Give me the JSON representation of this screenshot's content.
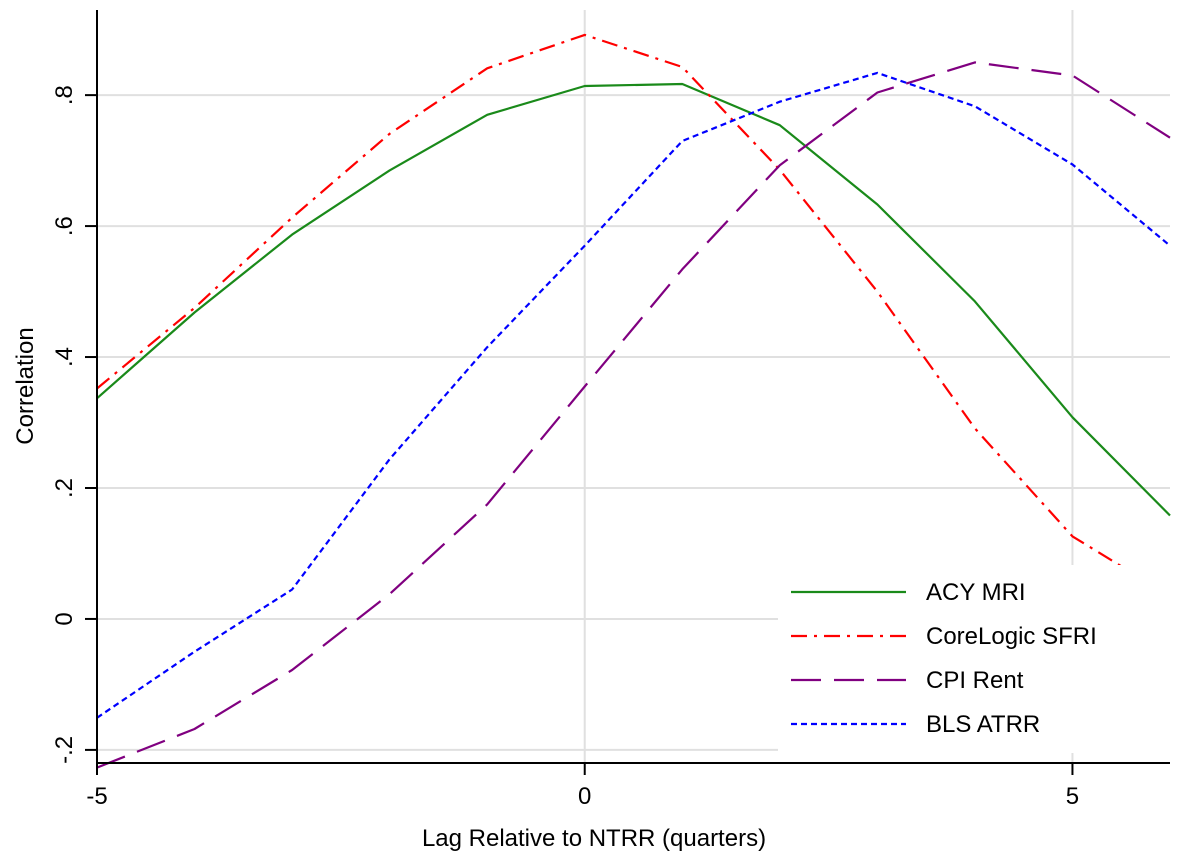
{
  "chart_data": {
    "type": "line",
    "title": "",
    "xlabel": "Lag Relative to NTRR (quarters)",
    "ylabel": "Correlation",
    "xlim": [
      -5,
      6
    ],
    "ylim": [
      -0.22,
      0.93
    ],
    "grid": true,
    "legend_position": "bottom-right",
    "x": [
      -5,
      -4,
      -3,
      -2,
      -1,
      0,
      1,
      2,
      3,
      4,
      5,
      6
    ],
    "x_ticks": [
      {
        "value": -5,
        "label": "-5"
      },
      {
        "value": 0,
        "label": "0"
      },
      {
        "value": 5,
        "label": "5"
      }
    ],
    "y_ticks": [
      {
        "value": -0.2,
        "label": "-.2"
      },
      {
        "value": 0,
        "label": "0"
      },
      {
        "value": 0.2,
        "label": ".2"
      },
      {
        "value": 0.4,
        "label": ".4"
      },
      {
        "value": 0.6,
        "label": ".6"
      },
      {
        "value": 0.8,
        "label": ".8"
      }
    ],
    "series": [
      {
        "name": "ACY MRI",
        "color": "#1a8a1a",
        "dash": "solid",
        "values": [
          0.337,
          0.468,
          0.587,
          0.685,
          0.77,
          0.814,
          0.817,
          0.754,
          0.633,
          0.485,
          0.308,
          0.158
        ]
      },
      {
        "name": "CoreLogic SFRI",
        "color": "#ff0000",
        "dash": "dashdot",
        "values": [
          0.352,
          0.475,
          0.613,
          0.741,
          0.841,
          0.892,
          0.843,
          0.686,
          0.5,
          0.291,
          0.126,
          0.035
        ]
      },
      {
        "name": "CPI Rent",
        "color": "#800080",
        "dash": "longdash",
        "values": [
          -0.227,
          -0.168,
          -0.078,
          0.038,
          0.175,
          0.355,
          0.534,
          0.693,
          0.804,
          0.85,
          0.83,
          0.735
        ]
      },
      {
        "name": "BLS ATRR",
        "color": "#0000ff",
        "dash": "shortdash",
        "values": [
          -0.151,
          -0.05,
          0.045,
          0.244,
          0.415,
          0.57,
          0.73,
          0.79,
          0.834,
          0.783,
          0.694,
          0.57
        ]
      }
    ]
  }
}
